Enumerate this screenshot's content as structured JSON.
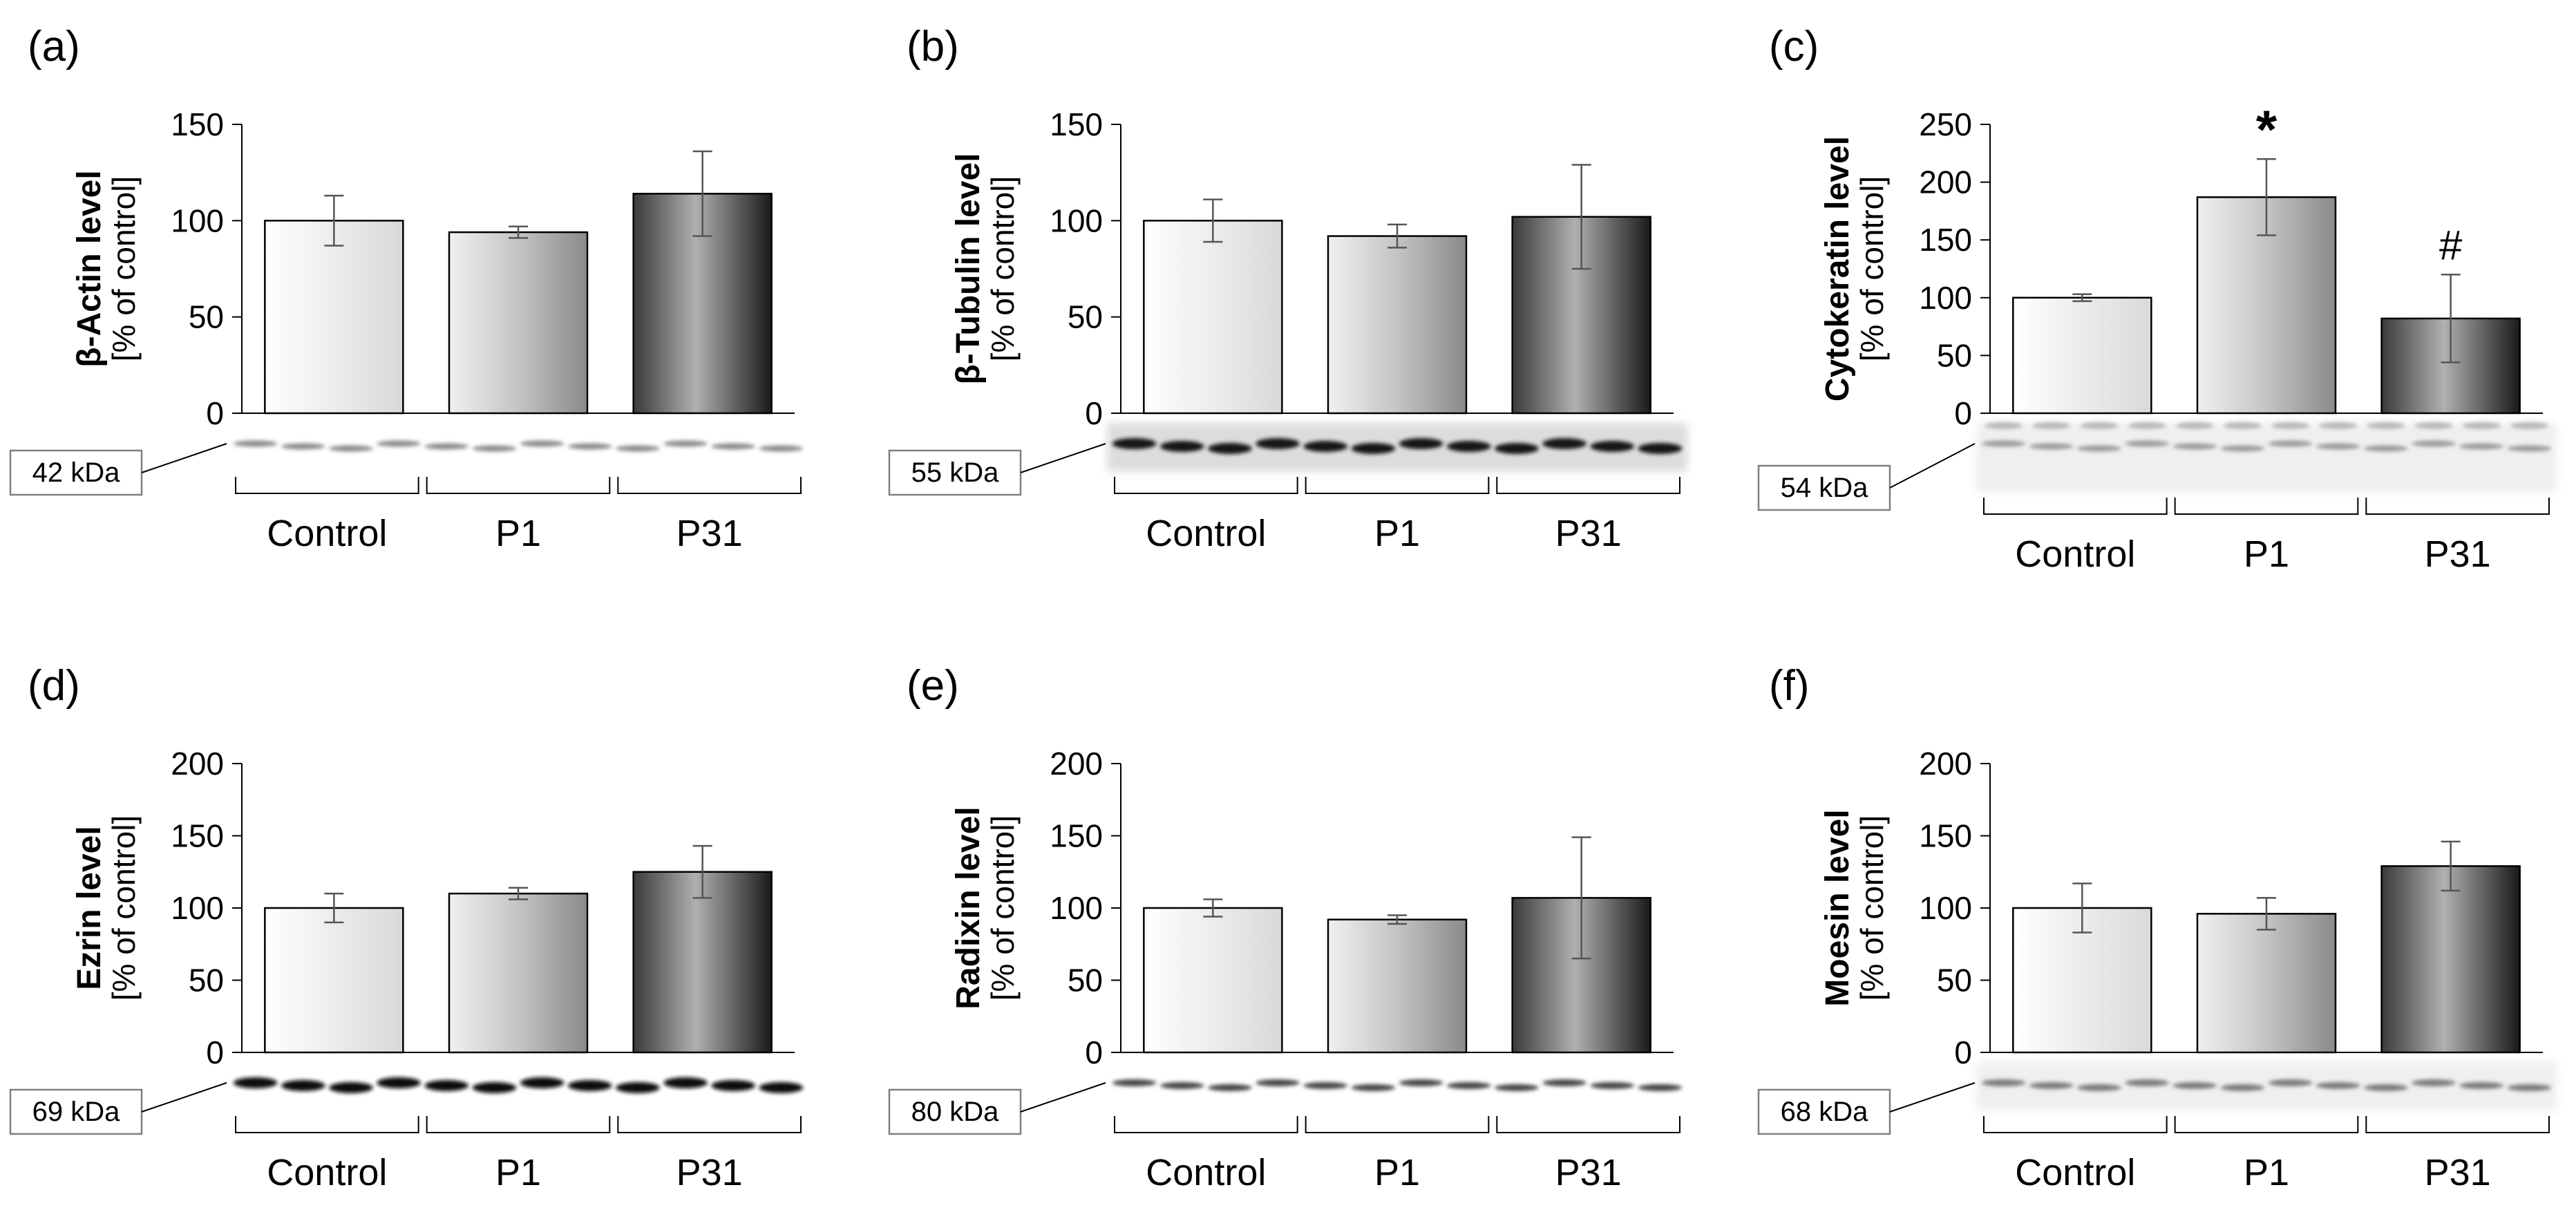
{
  "chart_data": [
    {
      "type": "bar",
      "panel_label": "(a)",
      "ylabel_main": "β-Actin level",
      "ylabel_sub": "[% of control]",
      "categories": [
        "Control",
        "P1",
        "P31"
      ],
      "values": [
        100,
        94,
        114
      ],
      "errors": [
        13,
        3,
        22
      ],
      "annotations": [
        "",
        "",
        ""
      ],
      "yticks": [
        0,
        50,
        100,
        150
      ],
      "ylim": [
        0,
        150
      ],
      "blot_label": "42 kDa",
      "blot_style": "light-bands"
    },
    {
      "type": "bar",
      "panel_label": "(b)",
      "ylabel_main": "β-Tubulin level",
      "ylabel_sub": "[% of control]",
      "categories": [
        "Control",
        "P1",
        "P31"
      ],
      "values": [
        100,
        92,
        102
      ],
      "errors": [
        11,
        6,
        27
      ],
      "annotations": [
        "",
        "",
        ""
      ],
      "yticks": [
        0,
        50,
        100,
        150
      ],
      "ylim": [
        0,
        150
      ],
      "blot_label": "55 kDa",
      "blot_style": "dark-strip"
    },
    {
      "type": "bar",
      "panel_label": "(c)",
      "ylabel_main": "Cytokeratin level",
      "ylabel_sub": "[% of control]",
      "categories": [
        "Control",
        "P1",
        "P31"
      ],
      "values": [
        100,
        187,
        82
      ],
      "errors": [
        3,
        33,
        38
      ],
      "annotations": [
        "",
        "*",
        "#"
      ],
      "yticks": [
        0,
        50,
        100,
        150,
        200,
        250
      ],
      "ylim": [
        0,
        250
      ],
      "blot_label": "54 kDa",
      "blot_style": "faint-double"
    },
    {
      "type": "bar",
      "panel_label": "(d)",
      "ylabel_main": "Ezrin level",
      "ylabel_sub": "[% of control]",
      "categories": [
        "Control",
        "P1",
        "P31"
      ],
      "values": [
        100,
        110,
        125
      ],
      "errors": [
        10,
        4,
        18
      ],
      "annotations": [
        "",
        "",
        ""
      ],
      "yticks": [
        0,
        50,
        100,
        150,
        200
      ],
      "ylim": [
        0,
        200
      ],
      "blot_label": "69 kDa",
      "blot_style": "dark-bands"
    },
    {
      "type": "bar",
      "panel_label": "(e)",
      "ylabel_main": "Radixin level",
      "ylabel_sub": "[% of control]",
      "categories": [
        "Control",
        "P1",
        "P31"
      ],
      "values": [
        100,
        92,
        107
      ],
      "errors": [
        6,
        3,
        42
      ],
      "annotations": [
        "",
        "",
        ""
      ],
      "yticks": [
        0,
        50,
        100,
        150,
        200
      ],
      "ylim": [
        0,
        200
      ],
      "blot_label": "80 kDa",
      "blot_style": "medium-bands"
    },
    {
      "type": "bar",
      "panel_label": "(f)",
      "ylabel_main": "Moesin level",
      "ylabel_sub": "[% of control]",
      "categories": [
        "Control",
        "P1",
        "P31"
      ],
      "values": [
        100,
        96,
        129
      ],
      "errors": [
        17,
        11,
        17
      ],
      "annotations": [
        "",
        "",
        ""
      ],
      "yticks": [
        0,
        50,
        100,
        150,
        200
      ],
      "ylim": [
        0,
        200
      ],
      "blot_label": "68 kDa",
      "blot_style": "light-strip"
    }
  ]
}
